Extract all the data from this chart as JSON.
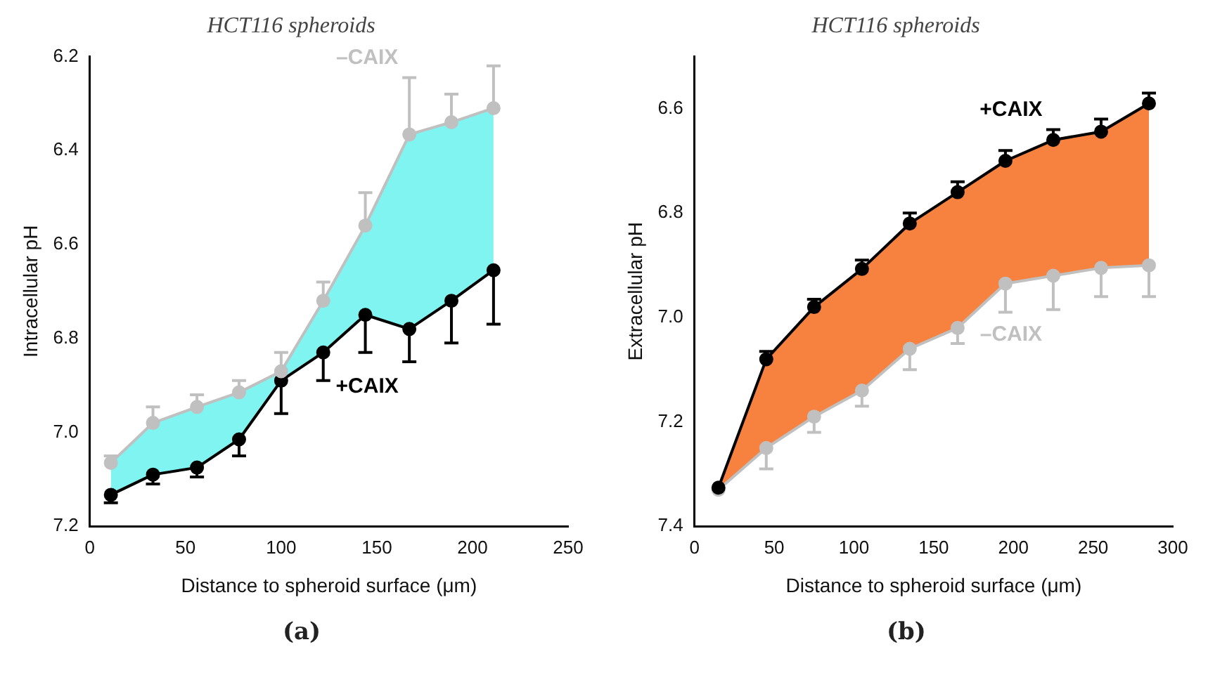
{
  "chart_data": [
    {
      "type": "line",
      "title": "HCT116 spheroids",
      "xlabel": "Distance to spheroid surface (μm)",
      "ylabel": "Intracellular pH",
      "annotations": [
        "(a)"
      ],
      "x": [
        11,
        33,
        56,
        78,
        100,
        122,
        144,
        167,
        189,
        211
      ],
      "xlim": [
        0,
        250
      ],
      "xticks": [
        0,
        50,
        100,
        150,
        200,
        250
      ],
      "ylim": [
        7.2,
        6.2
      ],
      "yticks": [
        {
          "value": 6.2,
          "label": "6.2"
        },
        {
          "value": 6.4,
          "label": "6.4"
        },
        {
          "value": 6.6,
          "label": "6.6"
        },
        {
          "value": 6.8,
          "label": "6.8"
        },
        {
          "value": 7.0,
          "label": "7.0"
        },
        {
          "value": 7.2,
          "label": "7.2"
        }
      ],
      "grid": false,
      "legend": false,
      "marker": "circle",
      "series": [
        {
          "name": "–CAIX",
          "color": "#c0c0c0",
          "values": [
            7.065,
            6.98,
            6.946,
            6.915,
            6.87,
            6.72,
            6.56,
            6.366,
            6.34,
            6.31
          ],
          "lower": [
            7.065,
            6.98,
            6.946,
            6.915,
            6.87,
            6.72,
            6.56,
            6.366,
            6.34,
            6.31
          ],
          "upper": [
            7.133,
            7.09,
            7.075,
            7.015,
            6.89,
            6.83,
            6.75,
            6.78,
            6.72,
            6.655
          ],
          "errors": [
            [
              7.05,
              7.065
            ],
            [
              6.946,
              6.98
            ],
            [
              6.92,
              6.946
            ],
            [
              6.89,
              6.915
            ],
            [
              6.83,
              6.87
            ],
            [
              6.68,
              6.72
            ],
            [
              6.49,
              6.56
            ],
            [
              6.245,
              6.366
            ],
            [
              6.28,
              6.34
            ],
            [
              6.22,
              6.31
            ]
          ]
        },
        {
          "name": "+CAIX",
          "color": "#000000",
          "values": [
            7.133,
            7.09,
            7.075,
            7.015,
            6.89,
            6.83,
            6.75,
            6.78,
            6.72,
            6.655
          ],
          "errors": [
            [
              7.133,
              7.15
            ],
            [
              7.09,
              7.11
            ],
            [
              7.075,
              7.095
            ],
            [
              7.015,
              7.05
            ],
            [
              6.89,
              6.96
            ],
            [
              6.83,
              6.89
            ],
            [
              6.75,
              6.83
            ],
            [
              6.78,
              6.85
            ],
            [
              6.72,
              6.81
            ],
            [
              6.655,
              6.77
            ]
          ]
        }
      ]
    },
    {
      "type": "line",
      "title": "HCT116 spheroids",
      "xlabel": "Distance to spheroid surface (μm)",
      "ylabel": "Extracellular pH",
      "annotations": [
        "(b)"
      ],
      "x": [
        15,
        45,
        75,
        105,
        135,
        165,
        195,
        225,
        255,
        285
      ],
      "xlim": [
        0,
        300
      ],
      "xticks": [
        0,
        50,
        100,
        150,
        200,
        250,
        300
      ],
      "ylim": [
        7.4,
        6.5
      ],
      "yticks": [
        {
          "value": 6.6,
          "label": "6.6"
        },
        {
          "value": 6.8,
          "label": "6.8"
        },
        {
          "value": 7.0,
          "label": "7.0"
        },
        {
          "value": 7.2,
          "label": "7.2"
        },
        {
          "value": 7.4,
          "label": "7.4"
        }
      ],
      "grid": false,
      "legend": false,
      "marker": "circle",
      "series": [
        {
          "name": "+CAIX",
          "color": "#000000",
          "values": [
            7.326,
            7.08,
            6.98,
            6.907,
            6.82,
            6.76,
            6.7,
            6.66,
            6.644,
            6.59
          ],
          "lower": [
            7.326,
            7.08,
            6.98,
            6.907,
            6.82,
            6.76,
            6.7,
            6.66,
            6.644,
            6.59
          ],
          "upper": [
            7.33,
            7.25,
            7.19,
            7.14,
            7.06,
            7.02,
            6.935,
            6.92,
            6.905,
            6.9
          ],
          "errors": [
            null,
            [
              7.065,
              7.08
            ],
            [
              6.965,
              6.98
            ],
            [
              6.89,
              6.907
            ],
            [
              6.8,
              6.82
            ],
            [
              6.74,
              6.76
            ],
            [
              6.68,
              6.7
            ],
            [
              6.64,
              6.66
            ],
            [
              6.62,
              6.644
            ],
            [
              6.57,
              6.59
            ]
          ]
        },
        {
          "name": "–CAIX",
          "color": "#c0c0c0",
          "values": [
            7.33,
            7.25,
            7.19,
            7.14,
            7.06,
            7.02,
            6.935,
            6.92,
            6.905,
            6.9
          ],
          "errors": [
            null,
            [
              7.25,
              7.29
            ],
            [
              7.19,
              7.22
            ],
            [
              7.14,
              7.17
            ],
            [
              7.06,
              7.1
            ],
            [
              7.02,
              7.05
            ],
            [
              6.935,
              6.99
            ],
            [
              6.92,
              6.985
            ],
            [
              6.905,
              6.96
            ],
            [
              6.9,
              6.96
            ]
          ]
        }
      ]
    }
  ]
}
